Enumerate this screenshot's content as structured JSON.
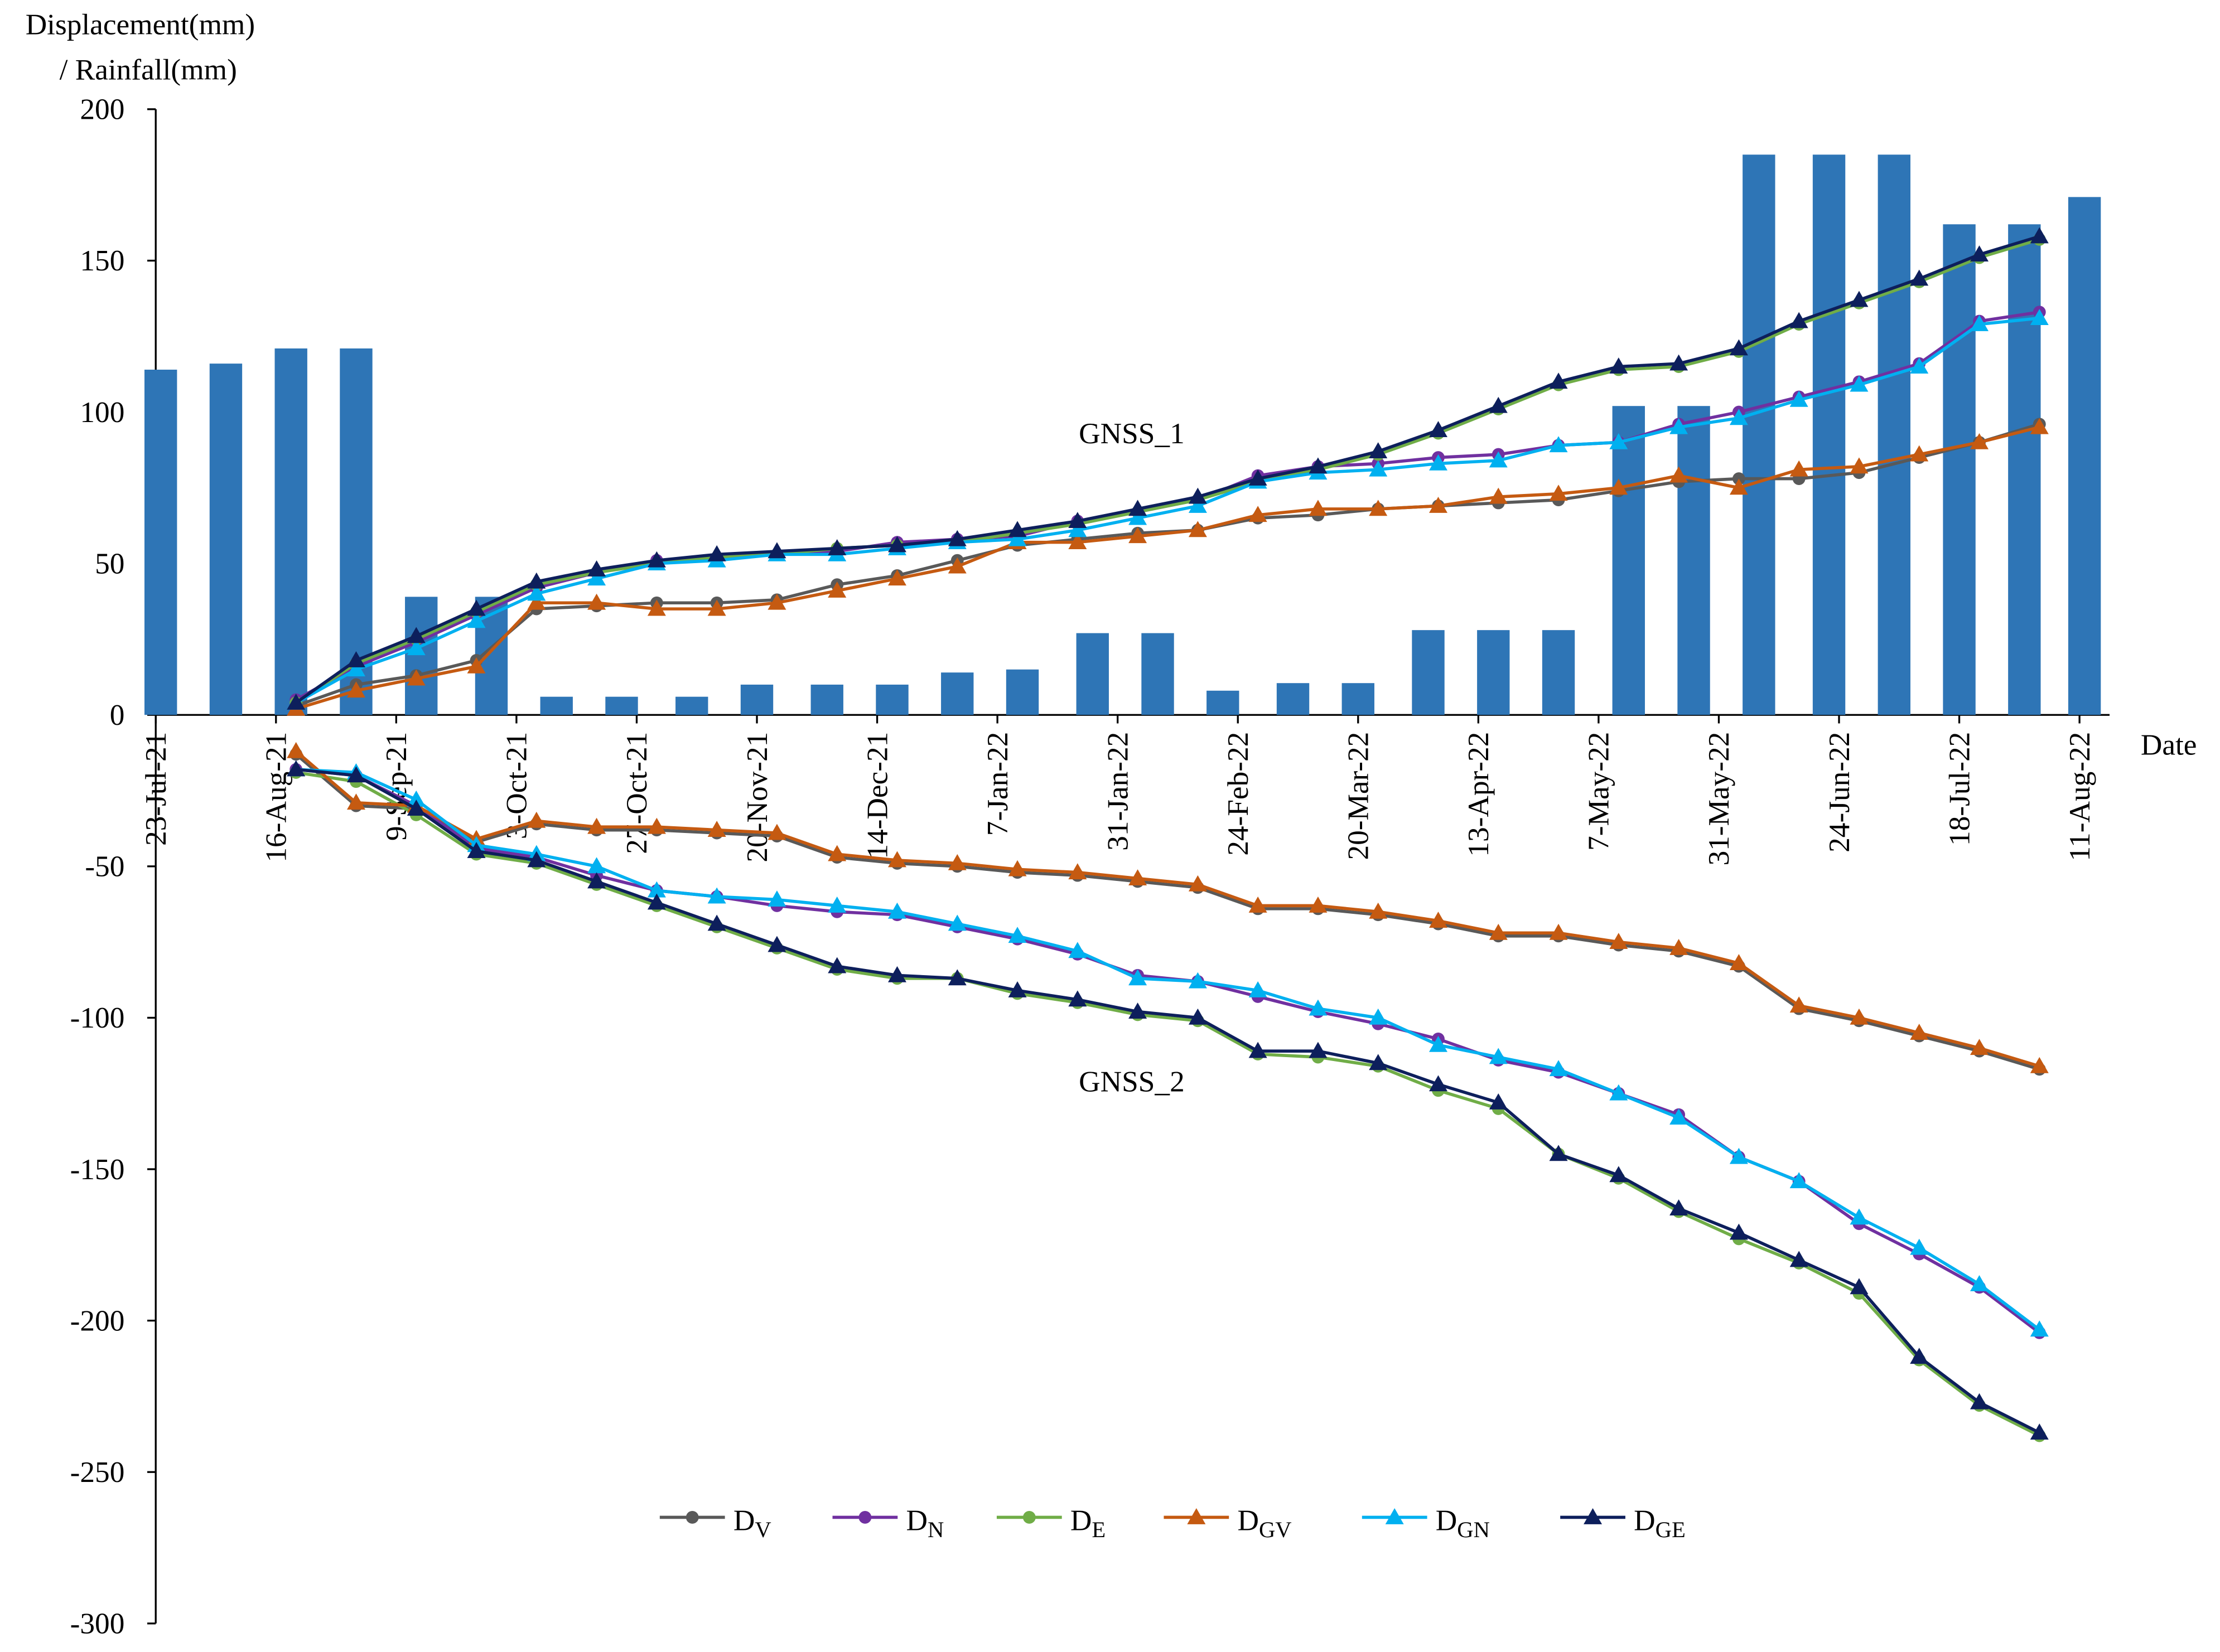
{
  "chart_data": {
    "type": "bar-line",
    "ylabel": [
      "Displacement(mm)",
      "/ Rainfall(mm)"
    ],
    "xlabel": "Date",
    "annotations": {
      "gnss_1": "GNSS_1",
      "gnss_2": "GNSS_2"
    },
    "ylim": [
      -300,
      200
    ],
    "yticks": [
      -300,
      -250,
      -200,
      -150,
      -100,
      -50,
      0,
      50,
      100,
      150,
      200
    ],
    "xlim": [
      "2021-07-23",
      "2022-08-17"
    ],
    "xticks": [
      {
        "value": "2021-07-23",
        "label": "23-Jul-21"
      },
      {
        "value": "2021-08-16",
        "label": "16-Aug-21"
      },
      {
        "value": "2021-09-09",
        "label": "9-Sep-21"
      },
      {
        "value": "2021-10-03",
        "label": "3-Oct-21"
      },
      {
        "value": "2021-10-27",
        "label": "27-Oct-21"
      },
      {
        "value": "2021-11-20",
        "label": "20-Nov-21"
      },
      {
        "value": "2021-12-14",
        "label": "14-Dec-21"
      },
      {
        "value": "2022-01-07",
        "label": "7-Jan-22"
      },
      {
        "value": "2022-01-31",
        "label": "31-Jan-22"
      },
      {
        "value": "2022-02-24",
        "label": "24-Feb-22"
      },
      {
        "value": "2022-03-20",
        "label": "20-Mar-22"
      },
      {
        "value": "2022-04-13",
        "label": "13-Apr-22"
      },
      {
        "value": "2022-05-07",
        "label": "7-May-22"
      },
      {
        "value": "2022-05-31",
        "label": "31-May-22"
      },
      {
        "value": "2022-06-24",
        "label": "24-Jun-22"
      },
      {
        "value": "2022-07-18",
        "label": "18-Jul-22"
      },
      {
        "value": "2022-08-11",
        "label": "11-Aug-22"
      }
    ],
    "grid": false,
    "legend": "bottom",
    "rainfall": {
      "color": "#2e75b6",
      "x": [
        "2021-07-24",
        "2021-08-06",
        "2021-08-19",
        "2021-09-01",
        "2021-09-14",
        "2021-09-28",
        "2021-10-11",
        "2021-10-24",
        "2021-11-07",
        "2021-11-20",
        "2021-12-04",
        "2021-12-17",
        "2021-12-30",
        "2022-01-12",
        "2022-01-26",
        "2022-02-08",
        "2022-02-21",
        "2022-03-07",
        "2022-03-20",
        "2022-04-03",
        "2022-04-16",
        "2022-04-29",
        "2022-05-13",
        "2022-05-26",
        "2022-06-08",
        "2022-06-22",
        "2022-07-05",
        "2022-07-18",
        "2022-07-31",
        "2022-08-12"
      ],
      "values": [
        114,
        116,
        121,
        121,
        39,
        39,
        6,
        6,
        6,
        10,
        10,
        10,
        14,
        15,
        27,
        27,
        8,
        10.5,
        10.5,
        28,
        28,
        28,
        102,
        102,
        185,
        185,
        185,
        162,
        162,
        171
      ]
    },
    "x": [
      "2021-08-20",
      "2021-09-01",
      "2021-09-13",
      "2021-09-25",
      "2021-10-07",
      "2021-10-19",
      "2021-10-31",
      "2021-11-12",
      "2021-11-24",
      "2021-12-06",
      "2021-12-18",
      "2021-12-30",
      "2022-01-11",
      "2022-01-23",
      "2022-02-04",
      "2022-02-16",
      "2022-02-28",
      "2022-03-12",
      "2022-03-24",
      "2022-04-05",
      "2022-04-17",
      "2022-04-29",
      "2022-05-11",
      "2022-05-23",
      "2022-06-04",
      "2022-06-16",
      "2022-06-28",
      "2022-07-10",
      "2022-07-22",
      "2022-08-03"
    ],
    "series": [
      {
        "name": "DV",
        "color": "#595959",
        "marker": "circle",
        "gnss_1": [
          3,
          10,
          13,
          18,
          35,
          36,
          37,
          37,
          38,
          43,
          46,
          51,
          56,
          58,
          60,
          61,
          65,
          66,
          68,
          69,
          70,
          71,
          74,
          77,
          78,
          78,
          80,
          85,
          90,
          96
        ],
        "gnss_2": [
          -13,
          -30,
          -31,
          -42,
          -36,
          -38,
          -38,
          -39,
          -40,
          -47,
          -49,
          -50,
          -52,
          -53,
          -55,
          -57,
          -64,
          -64,
          -66,
          -69,
          -73,
          -73,
          -76,
          -78,
          -83,
          -97,
          -101,
          -106,
          -111,
          -117
        ]
      },
      {
        "name": "DN",
        "color": "#7030a0",
        "marker": "circle",
        "gnss_1": [
          5,
          16,
          24,
          33,
          42,
          47,
          51,
          52,
          53,
          54,
          57,
          58,
          59,
          64,
          67,
          71,
          79,
          82,
          83,
          85,
          86,
          89,
          90,
          96,
          100,
          105,
          110,
          116,
          130,
          133
        ],
        "gnss_2": [
          -18,
          -20,
          -30,
          -44,
          -47,
          -53,
          -58,
          -60,
          -63,
          -65,
          -66,
          -70,
          -74,
          -79,
          -86,
          -88,
          -93,
          -98,
          -102,
          -107,
          -114,
          -118,
          -125,
          -132,
          -146,
          -154,
          -168,
          -178,
          -189,
          -204
        ]
      },
      {
        "name": "DE",
        "color": "#70ad47",
        "marker": "circle",
        "gnss_1": [
          4,
          17,
          25,
          34,
          43,
          47,
          50,
          52,
          53,
          55,
          56,
          57,
          60,
          63,
          67,
          71,
          77,
          81,
          86,
          93,
          101,
          109,
          114,
          115,
          120,
          129,
          136,
          143,
          151,
          157
        ],
        "gnss_2": [
          -19,
          -22,
          -33,
          -46,
          -49,
          -56,
          -63,
          -70,
          -77,
          -84,
          -87,
          -87,
          -92,
          -95,
          -99,
          -101,
          -112,
          -113,
          -116,
          -124,
          -130,
          -145,
          -153,
          -164,
          -173,
          -181,
          -191,
          -213,
          -228,
          -238
        ]
      },
      {
        "name": "DGV",
        "color": "#c55a11",
        "marker": "triangle",
        "gnss_1": [
          2,
          8,
          12,
          16,
          37,
          37,
          35,
          35,
          37,
          41,
          45,
          49,
          57,
          57,
          59,
          61,
          66,
          68,
          68,
          69,
          72,
          73,
          75,
          79,
          75,
          81,
          82,
          86,
          90,
          95
        ],
        "gnss_2": [
          -12,
          -29,
          -30,
          -41,
          -35,
          -37,
          -37,
          -38,
          -39,
          -46,
          -48,
          -49,
          -51,
          -52,
          -54,
          -56,
          -63,
          -63,
          -65,
          -68,
          -72,
          -72,
          -75,
          -77,
          -82,
          -96,
          -100,
          -105,
          -110,
          -116
        ]
      },
      {
        "name": "DGN",
        "color": "#00b0f0",
        "marker": "triangle",
        "gnss_1": [
          4,
          15,
          22,
          31,
          40,
          45,
          50,
          51,
          53,
          53,
          55,
          57,
          58,
          61,
          65,
          69,
          77,
          80,
          81,
          83,
          84,
          89,
          90,
          95,
          98,
          104,
          109,
          115,
          129,
          131
        ],
        "gnss_2": [
          -18,
          -19,
          -28,
          -43,
          -46,
          -50,
          -58,
          -60,
          -61,
          -63,
          -65,
          -69,
          -73,
          -78,
          -87,
          -88,
          -91,
          -97,
          -100,
          -109,
          -113,
          -117,
          -125,
          -133,
          -146,
          -154,
          -166,
          -176,
          -188,
          -203
        ]
      },
      {
        "name": "DGE",
        "color": "#0d1f5c",
        "marker": "triangle",
        "gnss_1": [
          4,
          18,
          26,
          35,
          44,
          48,
          51,
          53,
          54,
          55,
          56,
          58,
          61,
          64,
          68,
          72,
          78,
          82,
          87,
          94,
          102,
          110,
          115,
          116,
          121,
          130,
          137,
          144,
          152,
          158
        ],
        "gnss_2": [
          -18,
          -20,
          -31,
          -45,
          -48,
          -55,
          -62,
          -69,
          -76,
          -83,
          -86,
          -87,
          -91,
          -94,
          -98,
          -100,
          -111,
          -111,
          -115,
          -122,
          -128,
          -145,
          -152,
          -163,
          -171,
          -180,
          -189,
          -212,
          -227,
          -237
        ]
      }
    ]
  }
}
